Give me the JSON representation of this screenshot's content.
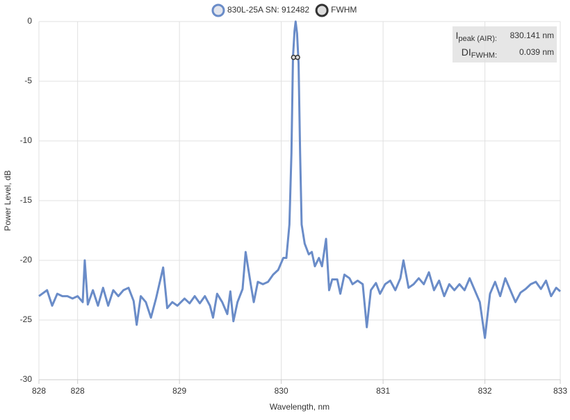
{
  "chart_data": {
    "type": "line",
    "xlabel": "Wavelength, nm",
    "ylabel": "Power Level, dB",
    "xlim": [
      827.62,
      832.74
    ],
    "xticks": [
      {
        "value": 827.62,
        "label": "828"
      },
      828,
      829,
      830,
      831,
      832,
      {
        "value": 832.74,
        "label": "833"
      }
    ],
    "ylim": [
      -30,
      0
    ],
    "yticks": [
      0,
      -5,
      -10,
      -15,
      -20,
      -25,
      -30
    ],
    "grid": true,
    "legend": "top",
    "series": [
      {
        "name": "830L-25A SN: 912482",
        "color": "#6a8cc8",
        "marker_fill": "#e3e6ee",
        "x": [
          827.62,
          827.7,
          827.75,
          827.8,
          827.85,
          827.9,
          827.95,
          828.0,
          828.05,
          828.07,
          828.1,
          828.15,
          828.2,
          828.25,
          828.3,
          828.35,
          828.4,
          828.45,
          828.5,
          828.55,
          828.58,
          828.62,
          828.67,
          828.72,
          828.77,
          828.84,
          828.88,
          828.93,
          828.98,
          829.05,
          829.1,
          829.15,
          829.2,
          829.25,
          829.3,
          829.33,
          829.37,
          829.42,
          829.47,
          829.5,
          829.53,
          829.57,
          829.62,
          829.65,
          829.7,
          829.73,
          829.77,
          829.82,
          829.87,
          829.92,
          829.97,
          830.0,
          830.02,
          830.05,
          830.08,
          830.1,
          830.115,
          830.13,
          830.141,
          830.155,
          830.17,
          830.185,
          830.2,
          830.23,
          830.27,
          830.3,
          830.33,
          830.37,
          830.4,
          830.44,
          830.47,
          830.5,
          830.55,
          830.58,
          830.62,
          830.67,
          830.7,
          830.75,
          830.8,
          830.84,
          830.88,
          830.93,
          830.97,
          831.02,
          831.07,
          831.12,
          831.17,
          831.2,
          831.25,
          831.3,
          831.35,
          831.4,
          831.45,
          831.5,
          831.55,
          831.6,
          831.65,
          831.7,
          831.75,
          831.8,
          831.85,
          831.9,
          831.95,
          832.0,
          832.05,
          832.1,
          832.15,
          832.2,
          832.25,
          832.3,
          832.35,
          832.4,
          832.45,
          832.5,
          832.55,
          832.6,
          832.65,
          832.7,
          832.74
        ],
        "values": [
          -23,
          -22.5,
          -23.8,
          -22.8,
          -23,
          -23,
          -23.2,
          -23,
          -23.5,
          -20,
          -23.7,
          -22.5,
          -23.8,
          -22.3,
          -23.8,
          -22.5,
          -23,
          -22.5,
          -22.3,
          -23.4,
          -25.4,
          -23,
          -23.5,
          -24.8,
          -23.2,
          -20.6,
          -24,
          -23.5,
          -23.8,
          -23.2,
          -23.6,
          -23,
          -23.6,
          -23,
          -23.8,
          -24.8,
          -22.8,
          -23.5,
          -24.5,
          -22.6,
          -25.1,
          -23.5,
          -22.4,
          -19.3,
          -22,
          -23.5,
          -21.8,
          -22,
          -21.8,
          -21.2,
          -20.8,
          -20.2,
          -19.8,
          -19.8,
          -17,
          -11,
          -3,
          -0.8,
          0,
          -1,
          -3.5,
          -11,
          -17,
          -18.6,
          -19.5,
          -19.3,
          -20.5,
          -19.8,
          -20.5,
          -18.2,
          -22.5,
          -21.6,
          -21.6,
          -22.8,
          -21.2,
          -21.5,
          -22,
          -21.7,
          -22,
          -25.6,
          -22.5,
          -21.9,
          -22.8,
          -22,
          -21.7,
          -22.5,
          -21.5,
          -20,
          -22.3,
          -22,
          -21.5,
          -22,
          -21,
          -22.5,
          -21.7,
          -23,
          -22,
          -22.5,
          -22,
          -22.5,
          -21.5,
          -22.5,
          -23.5,
          -26.5,
          -22.8,
          -21.8,
          -23,
          -21.5,
          -22.5,
          -23.5,
          -22.7,
          -22.4,
          -22,
          -21.8,
          -22.4,
          -21.7,
          -23,
          -22.3,
          -22.6
        ]
      },
      {
        "name": "FWHM",
        "color": "#333333",
        "marker_fill": "#dddddd",
        "marker": "point",
        "x": [
          830.121,
          830.16
        ],
        "values": [
          -3,
          -3
        ]
      }
    ],
    "annotations": [
      {
        "label": "I",
        "sub": "peak (AIR):",
        "value": "830.141 nm"
      },
      {
        "label": "DI",
        "sub": "FWHM:",
        "value": "0.039 nm"
      }
    ]
  }
}
